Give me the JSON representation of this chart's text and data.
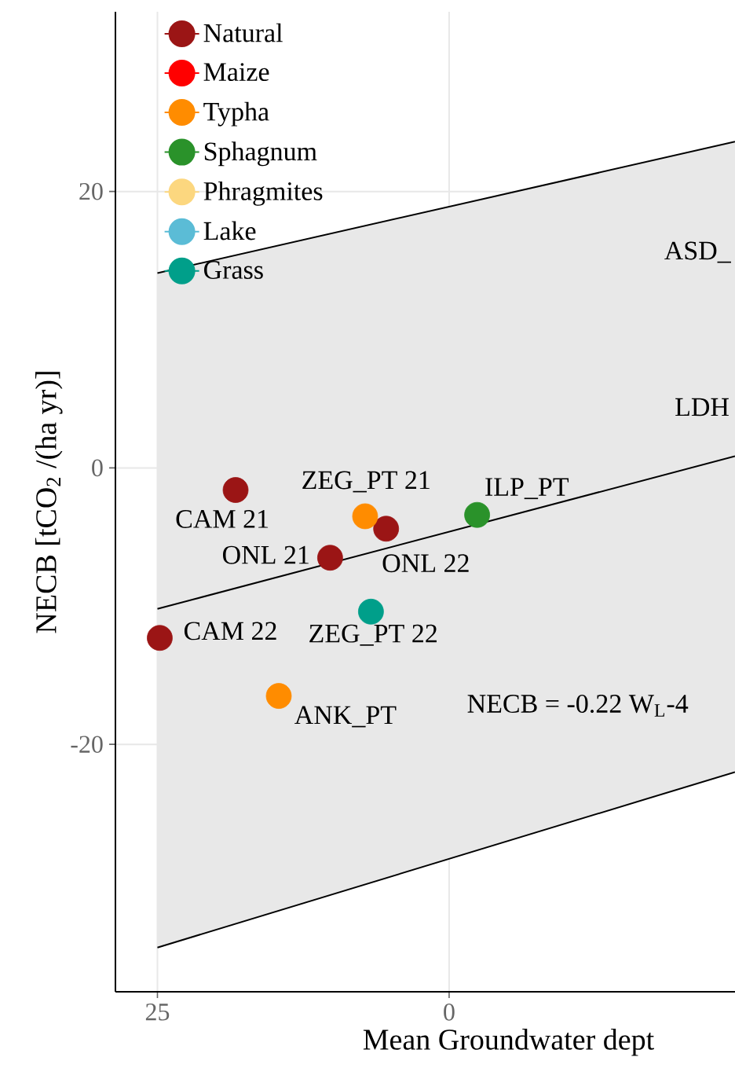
{
  "chart_data": {
    "type": "scatter",
    "xlabel": "Mean Groundwater dept",
    "ylabel": "NECB [tCO$_{2}$ /(ha yr)]",
    "xlim": [
      28.6,
      -24.5
    ],
    "ylim": [
      -37.9,
      33
    ],
    "xticks": [
      25,
      0
    ],
    "yticks": [
      -20,
      0,
      20
    ],
    "grid": true,
    "legend": "top left",
    "series": [
      {
        "name": "Natural",
        "color": "#9b1515",
        "x": [
          18.3,
          5.4,
          10.2,
          24.8
        ],
        "values": [
          -1.6,
          -4.4,
          -6.5,
          -12.3
        ]
      },
      {
        "name": "Maize",
        "color": "#ff0000"
      },
      {
        "name": "Typha",
        "color": "#ff8c00",
        "x": [
          7.2,
          14.6
        ],
        "values": [
          -3.5,
          -16.5
        ]
      },
      {
        "name": "Sphagnum",
        "color": "#2a922a",
        "x": [
          -2.4
        ],
        "values": [
          -3.4
        ]
      },
      {
        "name": "Phragmites",
        "color": "#fcd77f"
      },
      {
        "name": "Lake",
        "color": "#5bbcd6"
      },
      {
        "name": "Grass",
        "color": "#009f8a",
        "x": [
          6.7
        ],
        "values": [
          -10.4
        ]
      },
      {
        "type": "line",
        "color": "#000000",
        "x": [
          25,
          -24.5
        ],
        "values": [
          -10.2,
          0.85
        ],
        "lower": [
          -34.7,
          -22.0
        ],
        "upper": [
          14.1,
          23.6
        ]
      },
      {
        "type": "line",
        "color": "#000000",
        "x": [
          25,
          -24.5
        ],
        "values": [
          14.1,
          23.6
        ]
      },
      {
        "type": "line",
        "color": "#000000",
        "x": [
          25,
          -24.5
        ],
        "values": [
          -34.7,
          -22.0
        ]
      }
    ],
    "annotations": [
      "CAM 21",
      "ZEG_PT 21",
      "ILP_PT",
      "ONL 21",
      "ONL 22",
      "CAM 22",
      "ZEG_PT 22",
      "ANK_PT",
      "ASD_",
      "LDH",
      "NECB = -0.22 W$_{L}$-4"
    ]
  }
}
